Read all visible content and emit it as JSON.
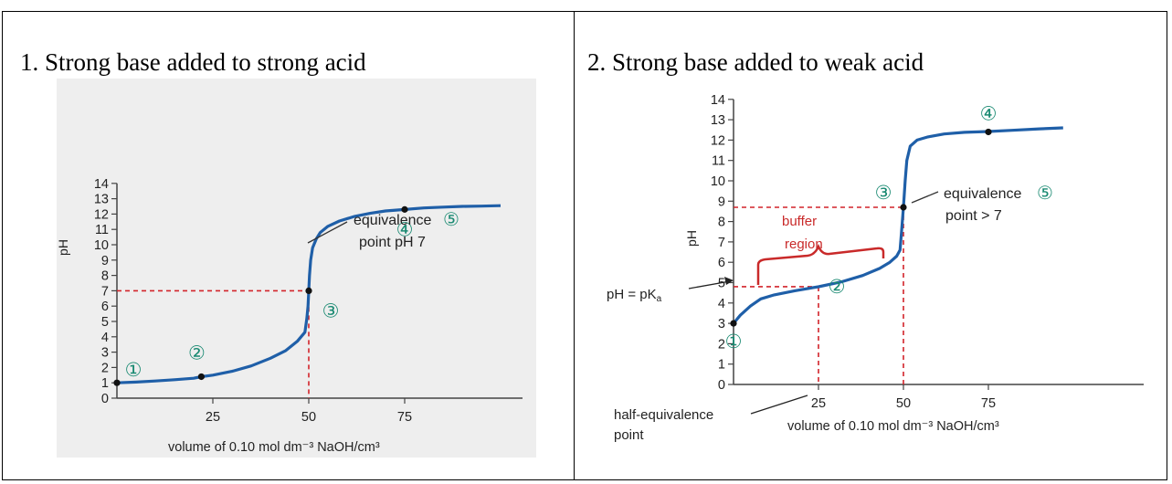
{
  "panels": [
    {
      "title": "1. Strong base added to strong acid"
    },
    {
      "title": "2. Strong base added to weak acid"
    }
  ],
  "chart_data": [
    {
      "type": "line",
      "title": "1. Strong base added to strong acid",
      "xlabel": "volume of 0.10 mol dm⁻³ NaOH/cm³",
      "ylabel": "pH",
      "xlim": [
        0,
        105
      ],
      "ylim": [
        0,
        14
      ],
      "xticks": [
        25,
        50,
        75
      ],
      "yticks": [
        0,
        1,
        2,
        3,
        4,
        5,
        6,
        7,
        8,
        9,
        10,
        11,
        12,
        13,
        14
      ],
      "grid": false,
      "series": [
        {
          "x": [
            0,
            5,
            10,
            15,
            20,
            22,
            25,
            30,
            35,
            40,
            44,
            47,
            49,
            49.5,
            49.8,
            50,
            50.2,
            50.5,
            51,
            52,
            53,
            55,
            58,
            62,
            66,
            70,
            75,
            80,
            85,
            90,
            95,
            100
          ],
          "y": [
            1.0,
            1.05,
            1.12,
            1.2,
            1.3,
            1.4,
            1.5,
            1.75,
            2.1,
            2.6,
            3.1,
            3.7,
            4.3,
            5.2,
            6.0,
            7.0,
            8.0,
            9.0,
            9.8,
            10.4,
            10.8,
            11.2,
            11.55,
            11.85,
            12.05,
            12.2,
            12.3,
            12.4,
            12.45,
            12.5,
            12.52,
            12.55
          ]
        }
      ],
      "marked_points": [
        {
          "label": "①",
          "x": 0,
          "y": 1.0
        },
        {
          "label": "②",
          "x": 22,
          "y": 1.4
        },
        {
          "label": "③",
          "x": 50,
          "y": 7.0
        },
        {
          "label": "④",
          "x": 75,
          "y": 12.3
        }
      ],
      "reference_lines": [
        {
          "y": 7,
          "x": 50,
          "style": "dashed",
          "color": "#d2232a"
        }
      ],
      "annotations": [
        {
          "text": "equivalence",
          "symbol": "⑤"
        },
        {
          "text": "point pH 7"
        }
      ],
      "colors": {
        "curve": "#1f5fa8",
        "dashed": "#d2232a",
        "marker": "#1a8a72",
        "background": "#eeeeee"
      }
    },
    {
      "type": "line",
      "title": "2. Strong base added to weak acid",
      "xlabel": "volume of 0.10 mol dm⁻³ NaOH/cm³",
      "ylabel": "pH",
      "xlim": [
        0,
        105
      ],
      "ylim": [
        0,
        14
      ],
      "xticks": [
        25,
        50,
        75
      ],
      "yticks": [
        0,
        1,
        2,
        3,
        4,
        5,
        6,
        7,
        8,
        9,
        10,
        11,
        12,
        13,
        14
      ],
      "grid": false,
      "series": [
        {
          "x": [
            0,
            2,
            5,
            8,
            12,
            18,
            25,
            32,
            38,
            43,
            46,
            48,
            49,
            49.5,
            50,
            50.5,
            51,
            52,
            54,
            57,
            62,
            68,
            75,
            82,
            90,
            97
          ],
          "y": [
            3.0,
            3.4,
            3.85,
            4.2,
            4.4,
            4.6,
            4.8,
            5.05,
            5.35,
            5.7,
            6.0,
            6.3,
            6.6,
            7.6,
            8.7,
            10.0,
            11.0,
            11.7,
            12.0,
            12.15,
            12.3,
            12.38,
            12.42,
            12.48,
            12.55,
            12.6
          ]
        }
      ],
      "marked_points": [
        {
          "label": "①",
          "x": 0,
          "y": 3.0
        },
        {
          "label": "②",
          "x": 25,
          "y": 4.8
        },
        {
          "label": "③",
          "x": 50,
          "y": 8.7
        },
        {
          "label": "④",
          "x": 75,
          "y": 12.4
        }
      ],
      "reference_lines": [
        {
          "y": 8.7,
          "x": 50,
          "style": "dashed",
          "color": "#d2232a"
        },
        {
          "y": 4.8,
          "x": 25,
          "style": "dashed",
          "color": "#d2232a"
        }
      ],
      "annotations": [
        {
          "text": "equivalence",
          "symbol": "⑤"
        },
        {
          "text": "point > 7"
        },
        {
          "text": "buffer"
        },
        {
          "text": "region"
        },
        {
          "text": "pH = pK",
          "subscript": "a"
        },
        {
          "text": "half-equivalence"
        },
        {
          "text": "point"
        }
      ],
      "colors": {
        "curve": "#1f5fa8",
        "dashed": "#d2232a",
        "marker": "#1a8a72",
        "buffer": "#c92a2a",
        "background": "#ffffff"
      }
    }
  ]
}
